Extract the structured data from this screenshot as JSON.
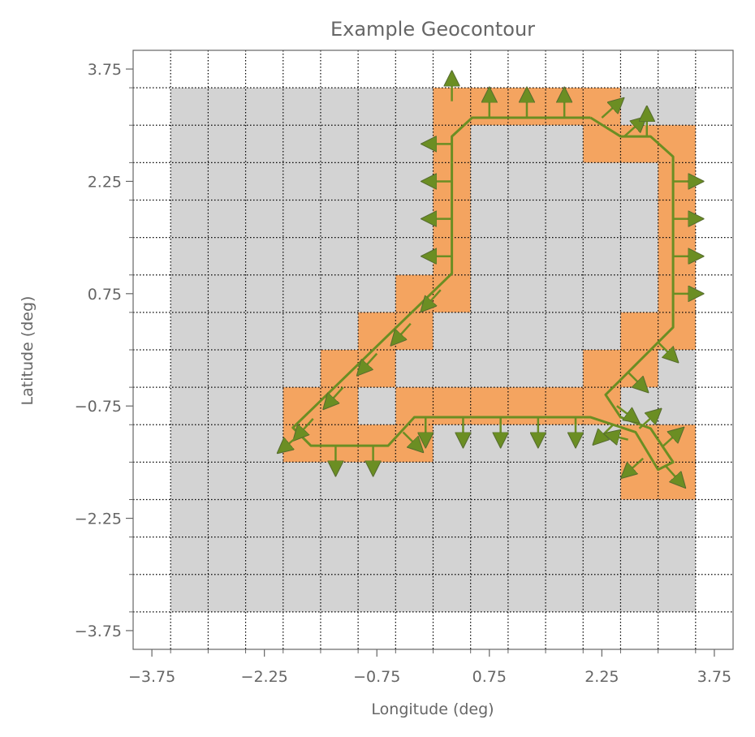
{
  "chart_data": {
    "type": "heatmap",
    "title": "Example Geocontour",
    "xlabel": "Longitude (deg)",
    "ylabel": "Latitude (deg)",
    "xlim": [
      -4.0,
      4.0
    ],
    "ylim": [
      -4.0,
      4.0
    ],
    "xticks": [
      -3.75,
      -2.25,
      -0.75,
      0.75,
      2.25,
      3.75
    ],
    "yticks": [
      -3.75,
      -2.25,
      -0.75,
      0.75,
      2.25,
      3.75
    ],
    "xtick_labels": [
      "−3.75",
      "−2.25",
      "−0.75",
      "0.75",
      "2.25",
      "3.75"
    ],
    "ytick_labels": [
      "−3.75",
      "−2.25",
      "−0.75",
      "0.75",
      "2.25",
      "3.75"
    ],
    "grid": true,
    "cell_size_deg": 0.5,
    "grid_region": {
      "lon": [
        -3.5,
        3.5
      ],
      "lat": [
        -3.5,
        3.5
      ]
    },
    "colors": {
      "background_cell": "#d3d3d3",
      "contour_cell": "#f4a460",
      "contour_line": "#6b8e23",
      "gridline": "#000000",
      "axis": "#666666"
    },
    "contour_cells": [
      [
        0.25,
        3.25
      ],
      [
        0.75,
        3.25
      ],
      [
        1.25,
        3.25
      ],
      [
        1.75,
        3.25
      ],
      [
        2.25,
        3.25
      ],
      [
        0.25,
        2.75
      ],
      [
        2.25,
        2.75
      ],
      [
        2.75,
        2.75
      ],
      [
        3.25,
        2.75
      ],
      [
        0.25,
        2.25
      ],
      [
        3.25,
        2.25
      ],
      [
        0.25,
        1.75
      ],
      [
        3.25,
        1.75
      ],
      [
        0.25,
        1.25
      ],
      [
        3.25,
        1.25
      ],
      [
        -0.25,
        0.75
      ],
      [
        0.25,
        0.75
      ],
      [
        3.25,
        0.75
      ],
      [
        -0.75,
        0.25
      ],
      [
        -0.25,
        0.25
      ],
      [
        2.75,
        0.25
      ],
      [
        3.25,
        0.25
      ],
      [
        -1.25,
        -0.25
      ],
      [
        -0.75,
        -0.25
      ],
      [
        2.25,
        -0.25
      ],
      [
        2.75,
        -0.25
      ],
      [
        -1.75,
        -0.75
      ],
      [
        -1.25,
        -0.75
      ],
      [
        -0.25,
        -0.75
      ],
      [
        0.25,
        -0.75
      ],
      [
        0.75,
        -0.75
      ],
      [
        1.25,
        -0.75
      ],
      [
        1.75,
        -0.75
      ],
      [
        2.25,
        -0.75
      ],
      [
        -1.75,
        -1.25
      ],
      [
        -1.25,
        -1.25
      ],
      [
        -0.75,
        -1.25
      ],
      [
        -0.25,
        -1.25
      ],
      [
        2.75,
        -1.25
      ],
      [
        3.25,
        -1.25
      ],
      [
        2.75,
        -1.75
      ],
      [
        3.25,
        -1.75
      ]
    ],
    "contour_line": [
      [
        2.1,
        3.1
      ],
      [
        0.52,
        3.1
      ],
      [
        0.25,
        2.85
      ],
      [
        0.25,
        1.02
      ],
      [
        -1.87,
        -1.04
      ],
      [
        -1.63,
        -1.28
      ],
      [
        -0.6,
        -1.28
      ],
      [
        -0.25,
        -0.9
      ],
      [
        2.1,
        -0.9
      ],
      [
        2.7,
        -1.1
      ],
      [
        3.0,
        -1.6
      ],
      [
        3.2,
        -1.5
      ],
      [
        2.9,
        -1.05
      ],
      [
        2.5,
        -0.9
      ],
      [
        2.3,
        -0.6
      ],
      [
        3.2,
        0.3
      ],
      [
        3.2,
        2.58
      ],
      [
        2.9,
        2.85
      ],
      [
        2.5,
        2.85
      ],
      [
        2.1,
        3.1
      ]
    ],
    "normal_arrows": [
      [
        0.25,
        3.32,
        0.0,
        0.28
      ],
      [
        0.75,
        3.1,
        0.0,
        0.28
      ],
      [
        1.25,
        3.1,
        0.0,
        0.28
      ],
      [
        1.75,
        3.1,
        0.0,
        0.28
      ],
      [
        2.25,
        3.1,
        0.2,
        0.18
      ],
      [
        2.55,
        2.85,
        0.2,
        0.18
      ],
      [
        2.85,
        2.85,
        0.0,
        0.28
      ],
      [
        0.25,
        2.75,
        -0.28,
        0.0
      ],
      [
        0.25,
        2.25,
        -0.28,
        0.0
      ],
      [
        0.25,
        1.75,
        -0.28,
        0.0
      ],
      [
        0.25,
        1.25,
        -0.28,
        0.0
      ],
      [
        0.1,
        0.8,
        -0.18,
        -0.2
      ],
      [
        -0.3,
        0.35,
        -0.18,
        -0.2
      ],
      [
        -0.75,
        -0.05,
        -0.18,
        -0.2
      ],
      [
        -1.2,
        -0.5,
        -0.18,
        -0.2
      ],
      [
        -1.6,
        -0.92,
        -0.18,
        -0.2
      ],
      [
        -1.8,
        -1.15,
        -0.18,
        -0.15
      ],
      [
        -1.3,
        -1.28,
        0.0,
        -0.28
      ],
      [
        -0.8,
        -1.28,
        0.0,
        -0.28
      ],
      [
        -0.4,
        -1.1,
        0.18,
        -0.18
      ],
      [
        -0.1,
        -0.9,
        0.0,
        -0.28
      ],
      [
        0.4,
        -0.9,
        0.0,
        -0.28
      ],
      [
        0.9,
        -0.9,
        0.0,
        -0.28
      ],
      [
        1.4,
        -0.9,
        0.0,
        -0.28
      ],
      [
        1.9,
        -0.9,
        0.0,
        -0.28
      ],
      [
        2.4,
        -1.0,
        -0.18,
        -0.18
      ],
      [
        3.2,
        2.25,
        0.28,
        0.0
      ],
      [
        3.2,
        1.75,
        0.28,
        0.0
      ],
      [
        3.2,
        1.25,
        0.28,
        0.0
      ],
      [
        3.2,
        0.75,
        0.28,
        0.0
      ],
      [
        3.0,
        0.1,
        0.18,
        -0.18
      ],
      [
        2.6,
        -0.3,
        0.18,
        -0.18
      ],
      [
        2.45,
        -0.75,
        0.2,
        -0.15
      ],
      [
        2.75,
        -1.05,
        0.2,
        0.18
      ],
      [
        3.05,
        -1.3,
        0.2,
        0.18
      ],
      [
        3.1,
        -1.55,
        0.18,
        -0.2
      ],
      [
        2.8,
        -1.45,
        -0.2,
        -0.18
      ],
      [
        2.6,
        -1.2,
        -0.2,
        0.05
      ]
    ]
  }
}
